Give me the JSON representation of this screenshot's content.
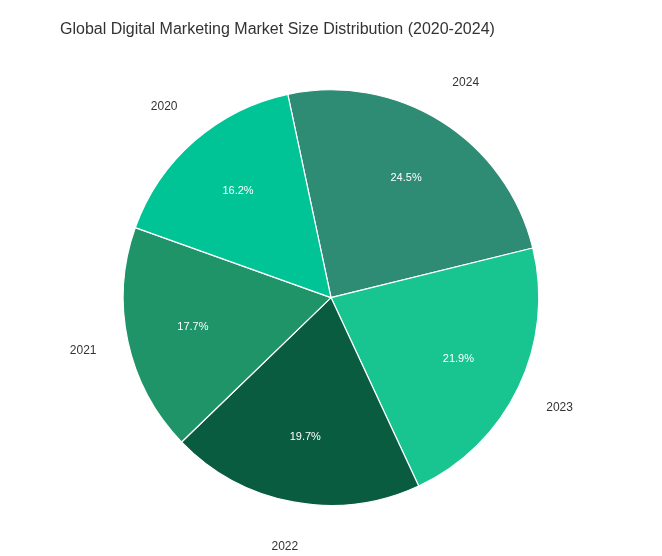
{
  "chart_data": {
    "type": "pie",
    "title": "Global Digital Marketing Market Size Distribution (2020-2024)",
    "categories": [
      "2024",
      "2023",
      "2022",
      "2021",
      "2020"
    ],
    "values": [
      24.5,
      21.9,
      19.7,
      17.7,
      16.2
    ],
    "value_labels": [
      "24.5%",
      "21.9%",
      "19.7%",
      "17.7%",
      "16.2%"
    ],
    "colors": [
      "#2e8b74",
      "#18c490",
      "#0a5c40",
      "#1e9468",
      "#00c496"
    ],
    "data_labels": true
  }
}
